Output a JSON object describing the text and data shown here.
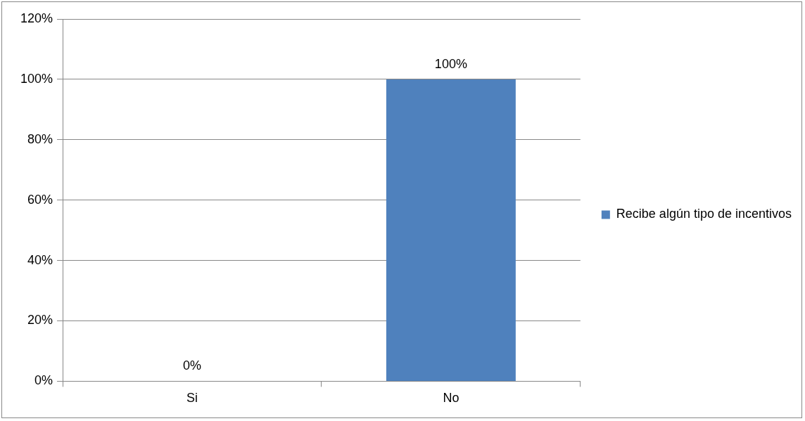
{
  "chart_data": {
    "type": "bar",
    "categories": [
      "Si",
      "No"
    ],
    "series": [
      {
        "name": "Recibe algún tipo de incentivos",
        "color": "#4f81bd",
        "values": [
          0,
          100
        ],
        "value_labels": [
          "0%",
          "100%"
        ]
      }
    ],
    "ylim": [
      0,
      120
    ],
    "yticks": [
      {
        "value": 0,
        "label": "0%"
      },
      {
        "value": 20,
        "label": "20%"
      },
      {
        "value": 40,
        "label": "40%"
      },
      {
        "value": 60,
        "label": "60%"
      },
      {
        "value": 80,
        "label": "80%"
      },
      {
        "value": 100,
        "label": "100%"
      },
      {
        "value": 120,
        "label": "120%"
      }
    ],
    "grid": "y",
    "legend": "right"
  }
}
